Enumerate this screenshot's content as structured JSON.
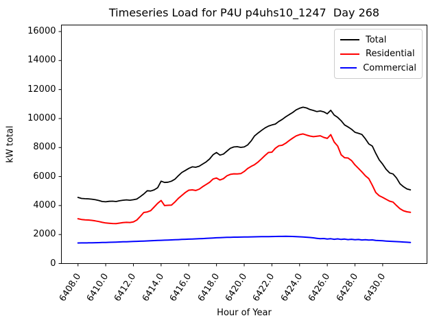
{
  "title": "Timeseries Load for P4U p4uhs10_1247  Day 268",
  "chart_data": {
    "type": "line",
    "title": "Timeseries Load for P4U p4uhs10_1247  Day 268",
    "xlabel": "Hour of Year",
    "ylabel": "kW total",
    "xlim": [
      6406.8,
      6433.2
    ],
    "ylim": [
      0,
      16450
    ],
    "grid": false,
    "legend_position": "upper right",
    "x_start": 6408.0,
    "x_step": 0.25,
    "x_ticks": [
      6408,
      6410,
      6412,
      6414,
      6416,
      6418,
      6420,
      6422,
      6424,
      6426,
      6428,
      6430
    ],
    "x_tick_labels": [
      "6408.0",
      "6410.0",
      "6412.0",
      "6414.0",
      "6416.0",
      "6418.0",
      "6420.0",
      "6422.0",
      "6424.0",
      "6426.0",
      "6428.0",
      "6430.0"
    ],
    "y_ticks": [
      0,
      2000,
      4000,
      6000,
      8000,
      10000,
      12000,
      14000,
      16000
    ],
    "y_tick_labels": [
      "0",
      "2000",
      "4000",
      "6000",
      "8000",
      "10000",
      "12000",
      "14000",
      "16000"
    ],
    "series": [
      {
        "name": "Total",
        "color": "#000000",
        "values": [
          4560,
          4490,
          4470,
          4460,
          4440,
          4400,
          4350,
          4280,
          4260,
          4290,
          4300,
          4280,
          4330,
          4370,
          4390,
          4370,
          4400,
          4450,
          4620,
          4800,
          5020,
          5000,
          5080,
          5230,
          5680,
          5590,
          5610,
          5680,
          5820,
          6060,
          6280,
          6420,
          6560,
          6670,
          6640,
          6710,
          6860,
          7010,
          7210,
          7500,
          7660,
          7480,
          7550,
          7750,
          7950,
          8040,
          8060,
          8010,
          8040,
          8180,
          8450,
          8800,
          9000,
          9180,
          9350,
          9480,
          9560,
          9620,
          9800,
          9940,
          10120,
          10270,
          10420,
          10600,
          10710,
          10780,
          10730,
          10620,
          10560,
          10480,
          10520,
          10460,
          10330,
          10570,
          10240,
          10080,
          9850,
          9560,
          9420,
          9260,
          9050,
          8980,
          8900,
          8600,
          8250,
          8100,
          7600,
          7150,
          6850,
          6500,
          6250,
          6180,
          5900,
          5500,
          5300,
          5150,
          5080
        ]
      },
      {
        "name": "Residential",
        "color": "#ff0000",
        "values": [
          3090,
          3040,
          3010,
          3000,
          2980,
          2940,
          2900,
          2840,
          2800,
          2780,
          2760,
          2750,
          2790,
          2820,
          2840,
          2830,
          2870,
          3000,
          3250,
          3520,
          3560,
          3650,
          3900,
          4150,
          4350,
          4000,
          4020,
          4030,
          4250,
          4500,
          4700,
          4900,
          5060,
          5080,
          5040,
          5130,
          5300,
          5450,
          5600,
          5830,
          5900,
          5760,
          5850,
          6050,
          6150,
          6190,
          6180,
          6200,
          6350,
          6550,
          6700,
          6820,
          7000,
          7220,
          7450,
          7660,
          7680,
          7950,
          8120,
          8160,
          8300,
          8480,
          8650,
          8800,
          8890,
          8940,
          8860,
          8790,
          8750,
          8780,
          8810,
          8700,
          8630,
          8890,
          8380,
          8100,
          7500,
          7300,
          7280,
          7100,
          6800,
          6560,
          6320,
          6050,
          5850,
          5400,
          4900,
          4680,
          4560,
          4430,
          4300,
          4240,
          4000,
          3780,
          3640,
          3570,
          3530
        ]
      },
      {
        "name": "Commercial",
        "color": "#0000ff",
        "values": [
          1420,
          1422,
          1425,
          1428,
          1432,
          1438,
          1444,
          1450,
          1458,
          1465,
          1472,
          1480,
          1490,
          1498,
          1505,
          1512,
          1520,
          1530,
          1540,
          1550,
          1560,
          1572,
          1582,
          1592,
          1602,
          1612,
          1622,
          1632,
          1642,
          1652,
          1662,
          1672,
          1682,
          1692,
          1702,
          1712,
          1722,
          1734,
          1748,
          1762,
          1775,
          1785,
          1795,
          1805,
          1812,
          1818,
          1822,
          1825,
          1828,
          1832,
          1838,
          1842,
          1848,
          1852,
          1856,
          1858,
          1862,
          1868,
          1870,
          1872,
          1875,
          1872,
          1868,
          1858,
          1845,
          1832,
          1815,
          1795,
          1772,
          1740,
          1710,
          1725,
          1690,
          1712,
          1675,
          1700,
          1662,
          1688,
          1650,
          1672,
          1640,
          1658,
          1628,
          1645,
          1618,
          1630,
          1600,
          1585,
          1568,
          1552,
          1538,
          1525,
          1512,
          1498,
          1485,
          1472,
          1455
        ]
      }
    ]
  }
}
